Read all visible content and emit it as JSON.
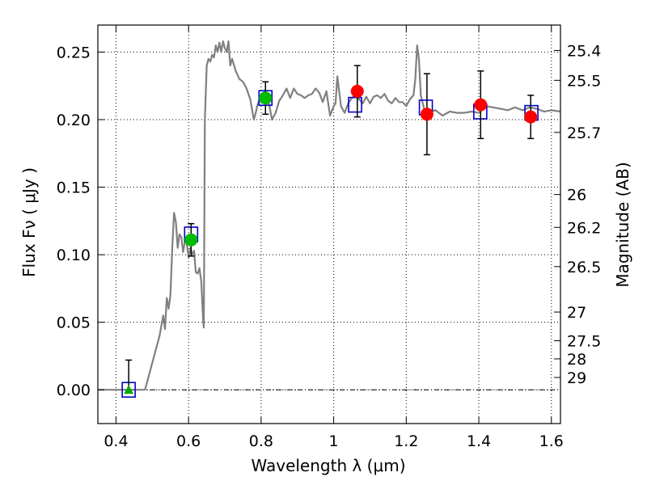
{
  "chart_data": {
    "type": "scatter",
    "title": "",
    "xlabel": "Wavelength  λ (μm)",
    "ylabel": "Flux  Fν  ( μJy )",
    "y2label": "Magnitude (AB)",
    "xlim": [
      0.35,
      1.625
    ],
    "ylim": [
      -0.025,
      0.27
    ],
    "grid": true,
    "x_ticks": [
      {
        "value": 0.4,
        "label": "0.4"
      },
      {
        "value": 0.6,
        "label": "0.6"
      },
      {
        "value": 0.8,
        "label": "0.8"
      },
      {
        "value": 1.0,
        "label": "1"
      },
      {
        "value": 1.2,
        "label": "1.2"
      },
      {
        "value": 1.4,
        "label": "1.4"
      },
      {
        "value": 1.6,
        "label": "1.6"
      }
    ],
    "y_ticks": [
      {
        "value": 0.0,
        "label": "0.00"
      },
      {
        "value": 0.05,
        "label": "0.05"
      },
      {
        "value": 0.1,
        "label": "0.10"
      },
      {
        "value": 0.15,
        "label": "0.15"
      },
      {
        "value": 0.2,
        "label": "0.20"
      },
      {
        "value": 0.25,
        "label": "0.25"
      }
    ],
    "y2_ticks": [
      {
        "mag": 25.4,
        "label": "25.4"
      },
      {
        "mag": 25.5,
        "label": "25.5"
      },
      {
        "mag": 25.7,
        "label": "25.7"
      },
      {
        "mag": 26,
        "label": "26"
      },
      {
        "mag": 26.2,
        "label": "26.2"
      },
      {
        "mag": 26.5,
        "label": "26.5"
      },
      {
        "mag": 27,
        "label": "27"
      },
      {
        "mag": 27.5,
        "label": "27.5"
      },
      {
        "mag": 28,
        "label": "28"
      },
      {
        "mag": 29,
        "label": "29"
      }
    ],
    "colors": {
      "model": "#808080",
      "model_photometry": "#0000cc",
      "observed": "#ff0000",
      "observed_alt": "#00bb00",
      "upper_limit": "#00aa00",
      "errorbar": "#000000"
    },
    "model_spectrum": {
      "x": [
        0.35,
        0.48,
        0.5,
        0.52,
        0.53,
        0.535,
        0.54,
        0.545,
        0.55,
        0.555,
        0.56,
        0.565,
        0.57,
        0.575,
        0.58,
        0.585,
        0.59,
        0.595,
        0.6,
        0.605,
        0.61,
        0.615,
        0.62,
        0.625,
        0.63,
        0.635,
        0.64,
        0.642,
        0.645,
        0.65,
        0.655,
        0.66,
        0.665,
        0.67,
        0.675,
        0.68,
        0.685,
        0.69,
        0.695,
        0.7,
        0.705,
        0.71,
        0.715,
        0.72,
        0.73,
        0.74,
        0.75,
        0.76,
        0.77,
        0.78,
        0.785,
        0.79,
        0.8,
        0.81,
        0.82,
        0.83,
        0.84,
        0.85,
        0.86,
        0.87,
        0.88,
        0.89,
        0.9,
        0.91,
        0.92,
        0.93,
        0.94,
        0.95,
        0.96,
        0.97,
        0.98,
        0.99,
        1.0,
        1.005,
        1.01,
        1.02,
        1.03,
        1.04,
        1.05,
        1.06,
        1.07,
        1.08,
        1.09,
        1.1,
        1.11,
        1.12,
        1.13,
        1.14,
        1.15,
        1.16,
        1.17,
        1.18,
        1.19,
        1.2,
        1.21,
        1.22,
        1.225,
        1.23,
        1.235,
        1.24,
        1.25,
        1.26,
        1.28,
        1.3,
        1.32,
        1.34,
        1.36,
        1.38,
        1.4,
        1.42,
        1.44,
        1.46,
        1.48,
        1.5,
        1.52,
        1.54,
        1.56,
        1.58,
        1.6,
        1.625
      ],
      "y": [
        0.0,
        0.0,
        0.02,
        0.04,
        0.055,
        0.045,
        0.068,
        0.06,
        0.07,
        0.105,
        0.131,
        0.124,
        0.105,
        0.115,
        0.113,
        0.102,
        0.11,
        0.108,
        0.098,
        0.105,
        0.1,
        0.103,
        0.087,
        0.086,
        0.09,
        0.08,
        0.052,
        0.046,
        0.2,
        0.24,
        0.245,
        0.243,
        0.248,
        0.246,
        0.255,
        0.25,
        0.257,
        0.25,
        0.258,
        0.253,
        0.25,
        0.258,
        0.24,
        0.245,
        0.236,
        0.23,
        0.228,
        0.223,
        0.215,
        0.2,
        0.205,
        0.211,
        0.218,
        0.221,
        0.214,
        0.2,
        0.205,
        0.214,
        0.218,
        0.223,
        0.216,
        0.223,
        0.219,
        0.218,
        0.216,
        0.218,
        0.219,
        0.223,
        0.22,
        0.213,
        0.221,
        0.203,
        0.21,
        0.212,
        0.232,
        0.21,
        0.205,
        0.212,
        0.216,
        0.218,
        0.215,
        0.212,
        0.217,
        0.212,
        0.217,
        0.218,
        0.216,
        0.219,
        0.214,
        0.212,
        0.216,
        0.213,
        0.213,
        0.21,
        0.215,
        0.218,
        0.23,
        0.255,
        0.245,
        0.218,
        0.207,
        0.205,
        0.207,
        0.203,
        0.206,
        0.205,
        0.205,
        0.206,
        0.205,
        0.21,
        0.209,
        0.208,
        0.207,
        0.209,
        0.207,
        0.209,
        0.208,
        0.206,
        0.207,
        0.206
      ]
    },
    "model_photometry": {
      "x": [
        0.435,
        0.607,
        0.812,
        1.059,
        1.254,
        1.404,
        1.545
      ],
      "y": [
        0.0,
        0.115,
        0.216,
        0.211,
        0.209,
        0.206,
        0.205
      ]
    },
    "observed_photometry": {
      "x": [
        0.607,
        0.812,
        1.065,
        1.257,
        1.405,
        1.543
      ],
      "y": [
        0.111,
        0.216,
        0.221,
        0.204,
        0.211,
        0.202
      ],
      "yerr": [
        0.012,
        0.012,
        0.019,
        0.03,
        0.025,
        0.016
      ],
      "colors": [
        "#00bb00",
        "#00bb00",
        "#ff0000",
        "#ff0000",
        "#ff0000",
        "#ff0000"
      ]
    },
    "upper_limit": {
      "x": 0.435,
      "y": 0.0,
      "yerr_upper": 0.022
    },
    "zero_line": 0.0
  }
}
